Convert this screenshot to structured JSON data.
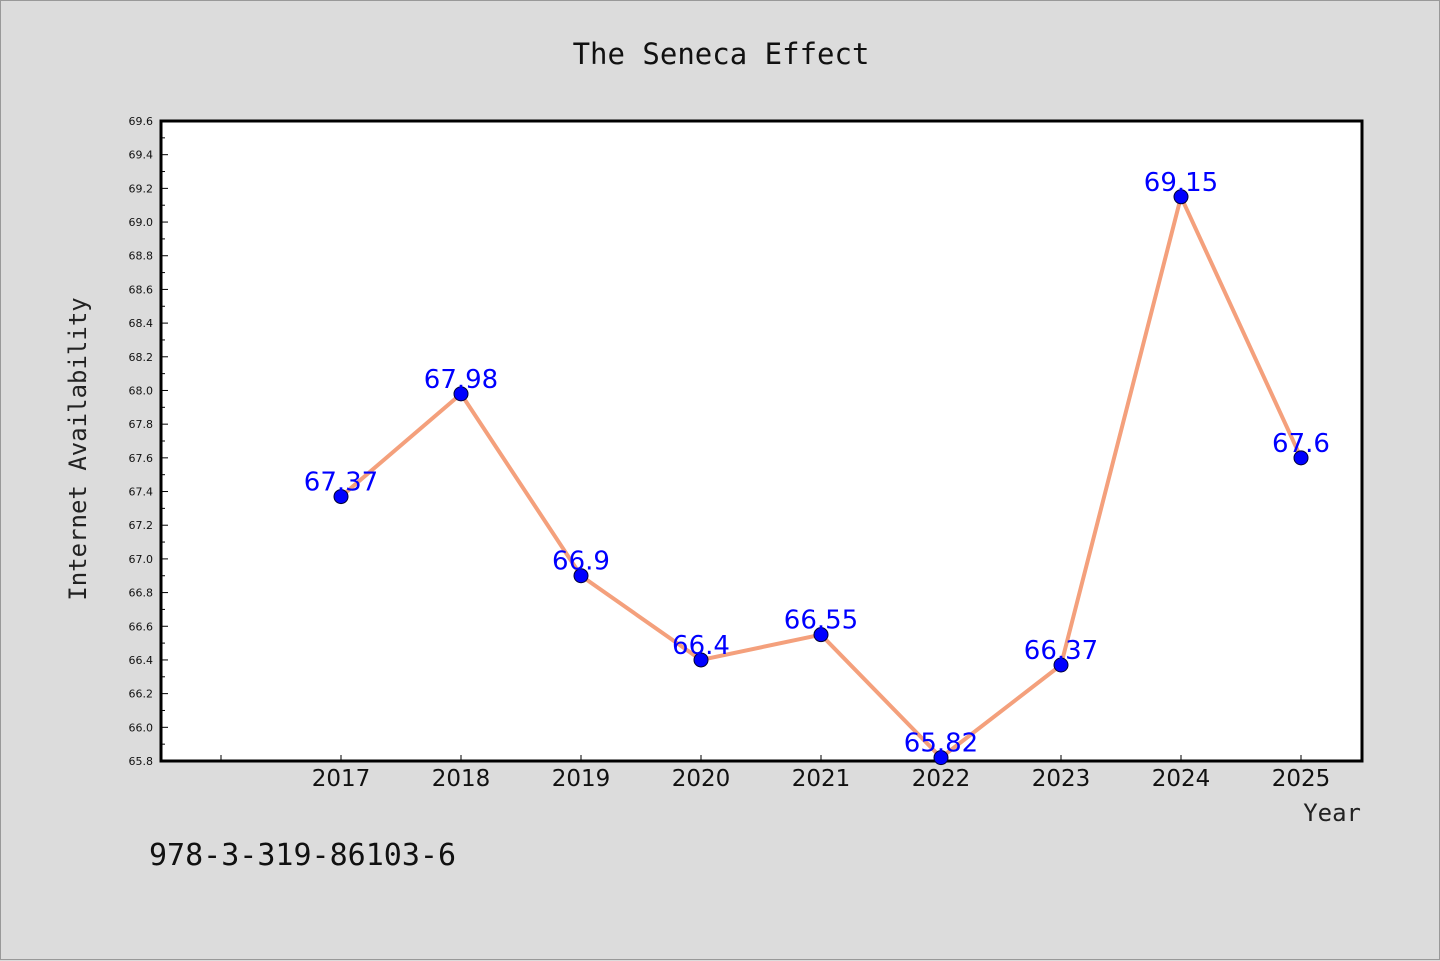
{
  "chart_data": {
    "type": "line",
    "title": "The Seneca Effect",
    "xlabel": "Year",
    "ylabel": "Internet Availability",
    "categories": [
      "2017",
      "2018",
      "2019",
      "2020",
      "2021",
      "2022",
      "2023",
      "2024",
      "2025"
    ],
    "values": [
      67.37,
      67.98,
      66.9,
      66.4,
      66.55,
      65.82,
      66.37,
      69.15,
      67.6
    ],
    "data_labels": [
      "67.37",
      "67.98",
      "66.9",
      "66.4",
      "66.55",
      "65.82",
      "66.37",
      "69.15",
      "67.6"
    ],
    "ylim": [
      65.8,
      69.6
    ],
    "yticks": [
      "65.8",
      "66.0",
      "66.2",
      "66.4",
      "66.6",
      "66.8",
      "67.0",
      "67.2",
      "67.4",
      "67.6",
      "67.8",
      "68.0",
      "68.2",
      "68.4",
      "68.6",
      "68.8",
      "69.0",
      "69.2",
      "69.4",
      "69.6"
    ],
    "grid": false,
    "legend": "none",
    "colors": {
      "line": "#f4a07c",
      "marker": "#0000ff",
      "data_label": "#0000ff",
      "plot_background": "#ffffff",
      "page_background": "#dcdcdc"
    }
  },
  "footer": {
    "code": "978-3-319-86103-6"
  }
}
